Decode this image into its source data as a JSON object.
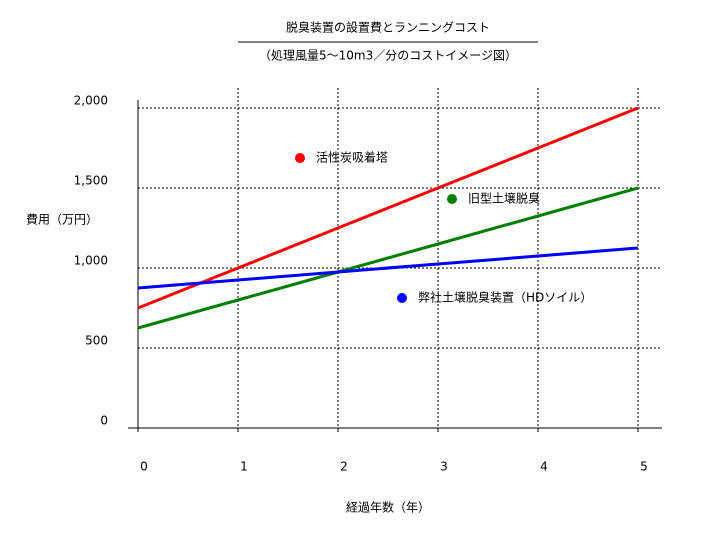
{
  "chart_data": {
    "type": "line",
    "title": "脱臭装置の設置費とランニングコスト",
    "subtitle": "（処理風量5～10m3／分のコストイメージ図）",
    "y_label": "費用（万円）",
    "x_label": "経過年数（年）",
    "x": [
      0,
      1,
      2,
      3,
      4,
      5
    ],
    "xlim": [
      0,
      5
    ],
    "xticks": [
      0,
      1,
      2,
      3,
      4,
      5
    ],
    "ylim": [
      0,
      2000
    ],
    "yticks": [
      0,
      500,
      {
        "value": 1000,
        "label": "1,000"
      },
      {
        "value": 1500,
        "label": "1,500"
      },
      {
        "value": 2000,
        "label": "2,000"
      }
    ],
    "grid": true,
    "series": [
      {
        "name": "活性炭吸着塔",
        "color": "#ff0000",
        "values": [
          750,
          1000,
          1250,
          1500,
          1750,
          2000
        ]
      },
      {
        "name": "旧型土壌脱臭",
        "color": "#008000",
        "values": [
          625,
          800,
          975,
          1150,
          1325,
          1500
        ]
      },
      {
        "name": "弊社土壌脱臭装置（HDソイル）",
        "color": "#0000ff",
        "values": [
          875,
          925,
          975,
          1025,
          1075,
          1125
        ]
      }
    ]
  }
}
